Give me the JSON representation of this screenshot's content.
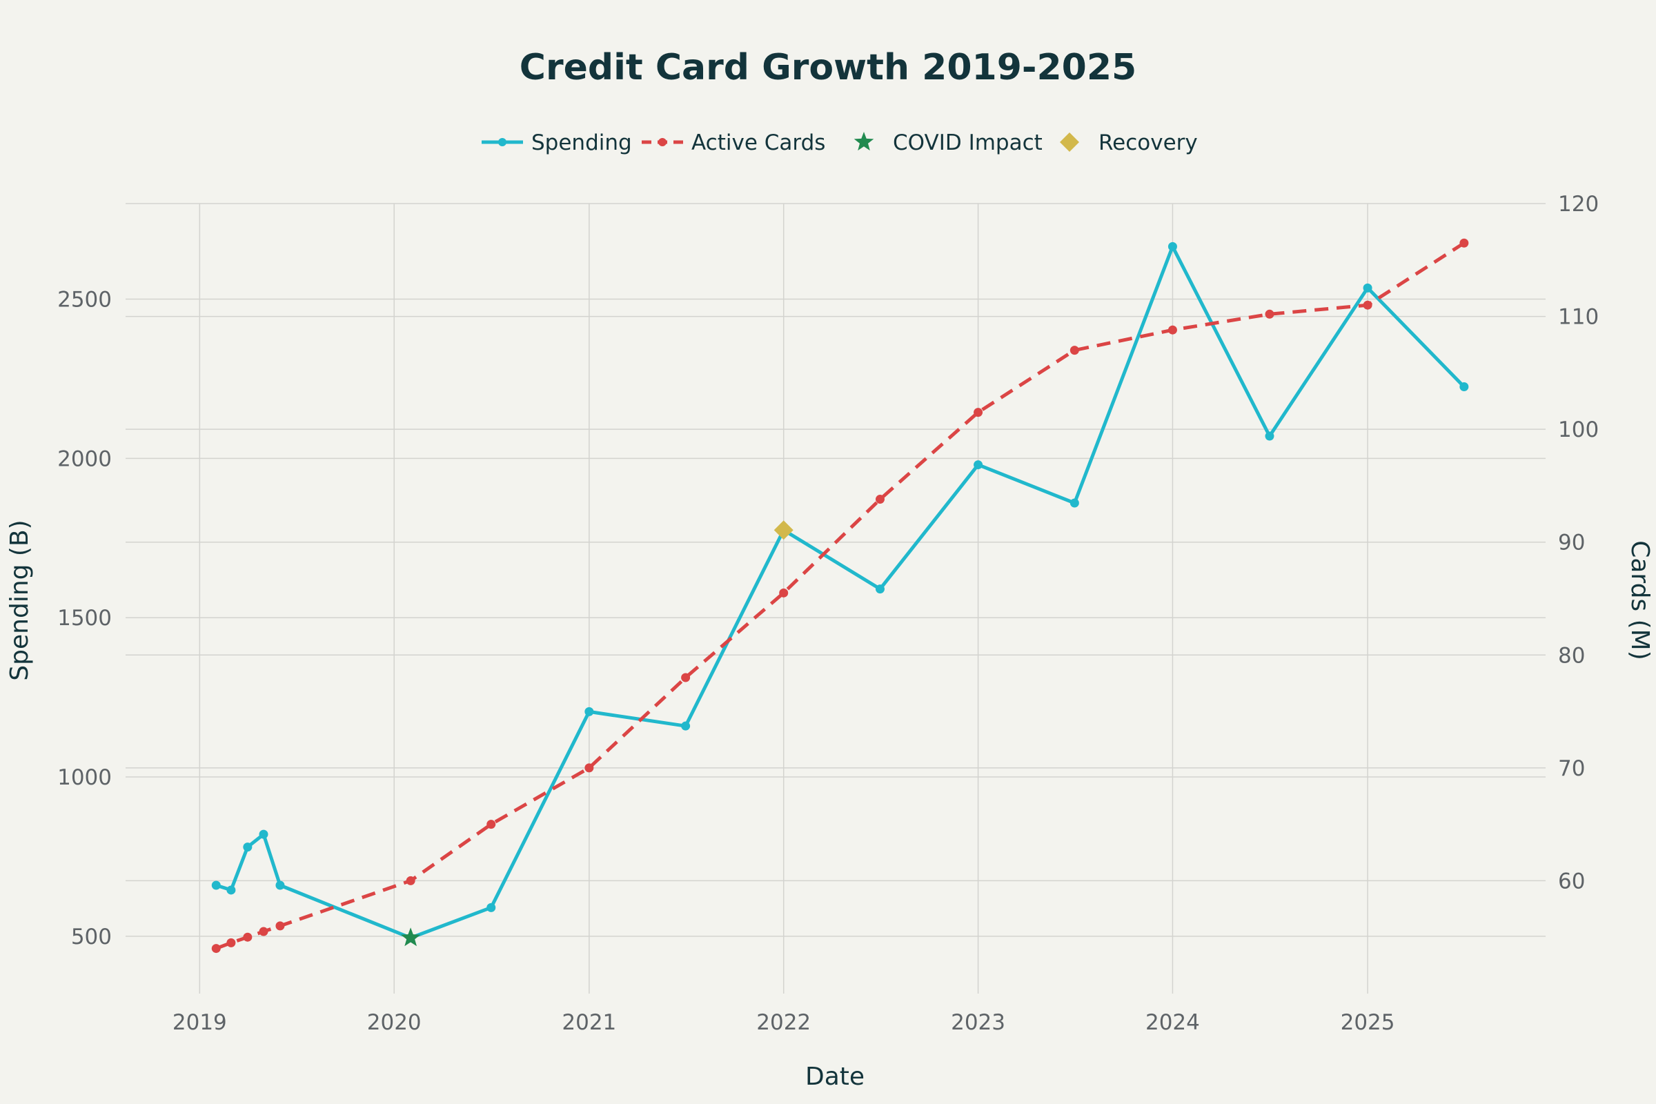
{
  "chart_data": {
    "type": "line",
    "title": "Credit Card Growth 2019-2025",
    "xlabel": "Date",
    "ylabel": "Spending (B)",
    "y2label": "Cards (M)",
    "legend_position": "top-center",
    "grid": true,
    "x_ticks": [
      "2019",
      "2020",
      "2021",
      "2022",
      "2023",
      "2024",
      "2025"
    ],
    "y_ticks": [
      500,
      1000,
      1500,
      2000,
      2500
    ],
    "y2_ticks": [
      60,
      70,
      80,
      90,
      100,
      110,
      120
    ],
    "ylim": [
      320,
      2800
    ],
    "y2lim": [
      50,
      120
    ],
    "xlim": [
      "2018-08-15",
      "2025-12-01"
    ],
    "series": [
      {
        "name": "Spending",
        "axis": "left",
        "color": "#21b8cc",
        "line_style": "solid",
        "x": [
          "2019-02-01",
          "2019-03-01",
          "2019-04-01",
          "2019-05-01",
          "2019-06-01",
          "2020-02-01",
          "2020-07-01",
          "2021-01-01",
          "2021-07-01",
          "2022-01-01",
          "2022-07-01",
          "2023-01-01",
          "2023-07-01",
          "2024-01-01",
          "2024-07-01",
          "2025-01-01",
          "2025-07-01"
        ],
        "values": [
          660,
          645,
          780,
          820,
          660,
          495,
          590,
          1205,
          1160,
          1775,
          1590,
          1980,
          1860,
          2665,
          2070,
          2535,
          2225
        ]
      },
      {
        "name": "Active Cards",
        "axis": "right",
        "color": "#db4545",
        "line_style": "dashed",
        "x": [
          "2019-02-01",
          "2019-03-01",
          "2019-04-01",
          "2019-05-01",
          "2019-06-01",
          "2020-02-01",
          "2020-07-01",
          "2021-01-01",
          "2021-07-01",
          "2022-01-01",
          "2022-07-01",
          "2023-01-01",
          "2023-07-01",
          "2024-01-01",
          "2024-07-01",
          "2025-01-01",
          "2025-07-01"
        ],
        "values": [
          54.0,
          54.5,
          55.0,
          55.5,
          56.0,
          60.0,
          65.0,
          70.0,
          78.0,
          85.5,
          93.8,
          101.5,
          107.0,
          108.8,
          110.2,
          111.0,
          116.5
        ]
      },
      {
        "name": "COVID Impact",
        "axis": "left",
        "color": "#218a4f",
        "marker": "star",
        "x": [
          "2020-02-01"
        ],
        "values": [
          495
        ]
      },
      {
        "name": "Recovery",
        "axis": "left",
        "color": "#d2b84b",
        "marker": "diamond",
        "x": [
          "2022-01-01"
        ],
        "values": [
          1775
        ]
      }
    ]
  }
}
